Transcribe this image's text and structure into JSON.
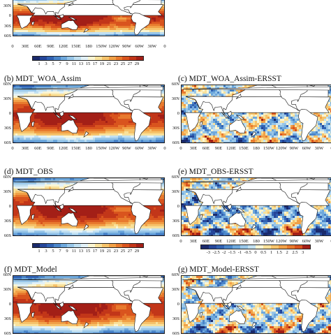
{
  "lat_labels": [
    "60N",
    "30N",
    "0",
    "30S",
    "60S"
  ],
  "lon_labels": [
    "0",
    "30E",
    "60E",
    "90E",
    "120E",
    "150E",
    "180",
    "150W",
    "120W",
    "90W",
    "60W",
    "30W",
    "0"
  ],
  "panels": [
    {
      "id": "a",
      "title": "",
      "type": "abs",
      "cut": "top"
    },
    {
      "id": "b",
      "title": "(b) MDT_WOA_Assim",
      "type": "abs"
    },
    {
      "id": "c",
      "title": "(c) MDT_WOA_Assim-ERSST",
      "type": "diff"
    },
    {
      "id": "d",
      "title": "(d) MDT_OBS",
      "type": "abs"
    },
    {
      "id": "e",
      "title": "(e) MDT_OBS-ERSST",
      "type": "diff"
    },
    {
      "id": "f",
      "title": "(f) MDT_Model",
      "type": "abs"
    },
    {
      "id": "g",
      "title": "(g) MDT_Model-ERSST",
      "type": "diff"
    }
  ],
  "abs_colorbar": {
    "labels": [
      "1",
      "3",
      "5",
      "7",
      "9",
      "11",
      "13",
      "15",
      "17",
      "19",
      "21",
      "23",
      "25",
      "27",
      "29"
    ],
    "colors": [
      "#1a2a6c",
      "#25469a",
      "#3162b3",
      "#4b86c9",
      "#6ea8dc",
      "#98c6e8",
      "#c1e0f1",
      "#e2f1f7",
      "#fbf5d2",
      "#f9e19a",
      "#f6c36b",
      "#f1a047",
      "#e87a2e",
      "#d9541e",
      "#c23619",
      "#a31f17"
    ]
  },
  "diff_colorbar": {
    "labels": [
      "-3",
      "-2.5",
      "-2",
      "-1.5",
      "-1",
      "-0.5",
      "0",
      "0.5",
      "1",
      "1.5",
      "2",
      "2.5",
      "3"
    ],
    "colors": [
      "#1a2a6c",
      "#25469a",
      "#3162b3",
      "#4b86c9",
      "#6ea8dc",
      "#98c6e8",
      "#c1e0f1",
      "#fbf5d2",
      "#f9e19a",
      "#f6c36b",
      "#f1a047",
      "#e87a2e",
      "#d9541e",
      "#a31f17"
    ]
  }
}
